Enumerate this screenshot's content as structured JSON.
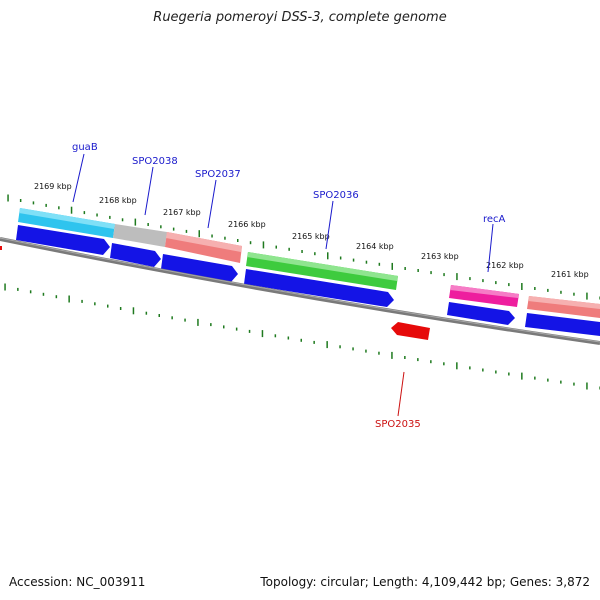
{
  "title": "Ruegeria pomeroyi DSS-3, complete genome",
  "accession": "Accession: NC_003911",
  "topology": "Topology: circular; Length: 4,109,442 bp; Genes: 3,872",
  "colors": {
    "background": "#ffffff",
    "backbone": "#7a7a7a",
    "tick": "#1f7a1f",
    "cds": "#1414e6",
    "label_forward": "#1a1acc",
    "label_reverse": "#cc1111"
  },
  "scale_labels": [
    "2169 kbp",
    "2168 kbp",
    "2167 kbp",
    "2166 kbp",
    "2165 kbp",
    "2164 kbp",
    "2163 kbp",
    "2162 kbp",
    "2161 kbp"
  ],
  "gene_labels": [
    {
      "name": "guaB",
      "strand": "forward"
    },
    {
      "name": "SPO2038",
      "strand": "forward"
    },
    {
      "name": "SPO2037",
      "strand": "forward"
    },
    {
      "name": "SPO2036",
      "strand": "forward"
    },
    {
      "name": "recA",
      "strand": "forward"
    },
    {
      "name": "SPO2035",
      "strand": "reverse"
    }
  ],
  "feature_colors": [
    {
      "gene": "guaB",
      "color": "#2ec4ee"
    },
    {
      "gene": "SPO2038",
      "color": "#bdbdbd"
    },
    {
      "gene": "SPO2037",
      "color": "#ef7c7c"
    },
    {
      "gene": "SPO2036",
      "color": "#3ecb3e"
    },
    {
      "gene": "recA",
      "color": "#ee1e9e"
    },
    {
      "gene": "unnamed",
      "color": "#ef7c7c"
    }
  ]
}
